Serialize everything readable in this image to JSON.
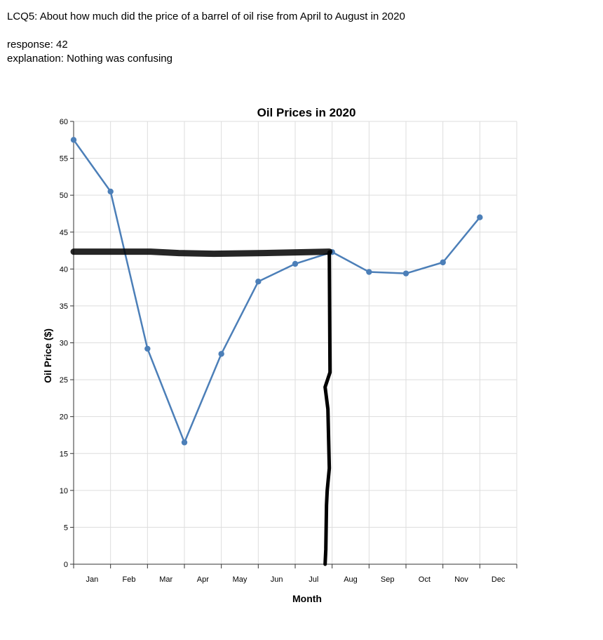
{
  "survey": {
    "question": "LCQ5: About how much did the price of a barrel of oil rise from April to August in 2020",
    "response": "response: 42",
    "explanation": "explanation: Nothing was confusing"
  },
  "colors": {
    "series": "#4c7fb8",
    "grid": "#dddddd",
    "axis": "#333333",
    "annotation": "#000000"
  },
  "chart_data": {
    "type": "line",
    "title": "Oil Prices in 2020",
    "xlabel": "Month",
    "ylabel": "Oil Price ($)",
    "categories": [
      "Jan",
      "Feb",
      "Mar",
      "Apr",
      "May",
      "Jun",
      "Jul",
      "Aug",
      "Sep",
      "Oct",
      "Nov",
      "Dec"
    ],
    "values": [
      57.5,
      50.5,
      29.2,
      16.5,
      28.5,
      38.3,
      40.7,
      42.3,
      39.6,
      39.4,
      40.9,
      47.0
    ],
    "ylim": [
      0,
      60
    ],
    "yticks": [
      0,
      5,
      10,
      15,
      20,
      25,
      30,
      35,
      40,
      45,
      50,
      55,
      60
    ],
    "grid": true,
    "legend": "none",
    "annotation": {
      "description": "hand-drawn marker lines",
      "horizontal_at_y": 42.3,
      "vertical_at_category": "Aug"
    }
  }
}
